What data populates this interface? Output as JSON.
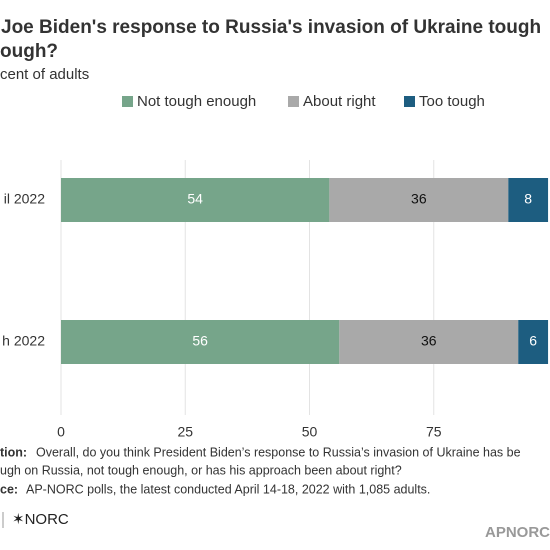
{
  "chart_data": {
    "type": "stacked_bar",
    "title": [
      "Joe Biden's response to Russia's invasion of Ukraine tough",
      "ough?"
    ],
    "subtitle": "cent of adults",
    "categories": [
      "il 2022",
      "h 2022"
    ],
    "series": [
      {
        "name": "Not tough enough",
        "color": "#76a58a",
        "label_color": "#ffffff",
        "values": [
          54,
          56
        ]
      },
      {
        "name": "About right",
        "color": "#a9a9a9",
        "label_color": "#111111",
        "values": [
          36,
          36
        ]
      },
      {
        "name": "Too tough",
        "color": "#1d5d80",
        "label_color": "#ffffff",
        "values": [
          8,
          6
        ]
      }
    ],
    "xlim": [
      0,
      100
    ],
    "xticks": [
      0,
      25,
      50,
      75
    ],
    "grid": true,
    "notes": {
      "question_label": "tion:",
      "question": [
        "Overall, do you think President Biden’s response to Russia’s invasion of Ukraine has be",
        "ugh on Russia, not tough enough, or has his approach been about right?"
      ],
      "source_label": "ce:",
      "source": "AP-NORC polls, the latest conducted April 14-18, 2022 with 1,085 adults.",
      "logo": "✶NORC",
      "brand": "APNORC"
    }
  }
}
